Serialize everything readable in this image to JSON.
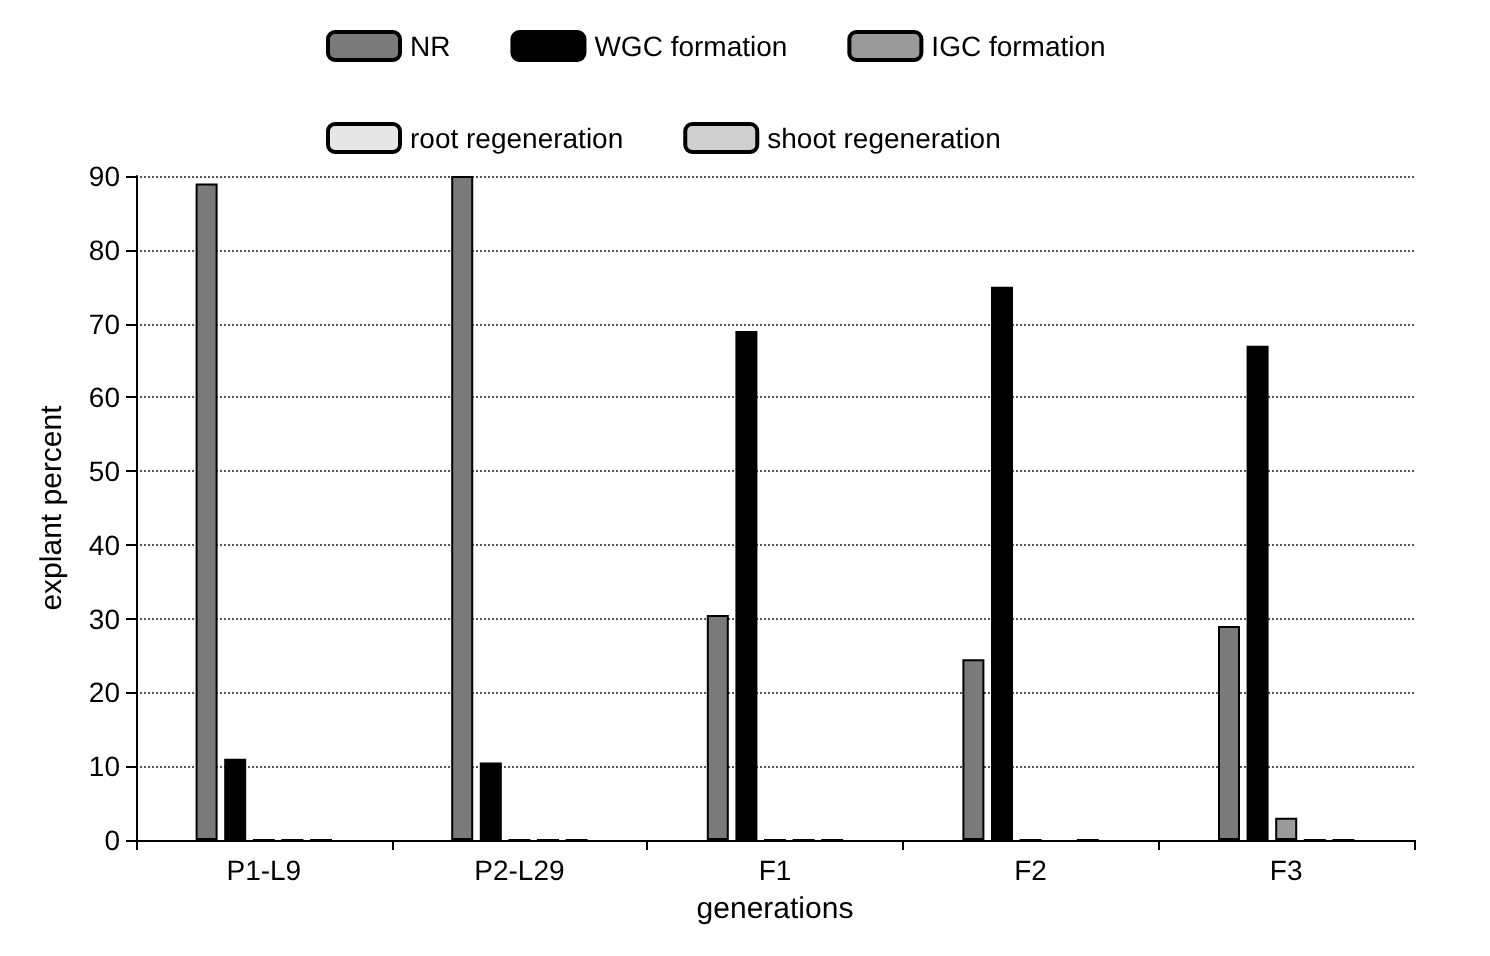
{
  "chart_data": {
    "type": "bar",
    "xlabel": "generations",
    "ylabel": "explant percent",
    "categories": [
      "P1-L9",
      "P2-L29",
      "F1",
      "F2",
      "F3"
    ],
    "series": [
      {
        "name": "NR",
        "color": "#7a7a7a",
        "values": [
          89,
          90,
          30.5,
          24.5,
          29
        ]
      },
      {
        "name": "WGC formation",
        "color": "#000000",
        "values": [
          11,
          10.5,
          69,
          75,
          67
        ]
      },
      {
        "name": "IGC formation",
        "color": "#9a9a9a",
        "values": [
          0,
          0,
          0,
          0,
          3
        ]
      },
      {
        "name": "root regeneration",
        "color": "#e6e6e6",
        "values": [
          0,
          0,
          0,
          null,
          0
        ]
      },
      {
        "name": "shoot regeneration",
        "color": "#cfcfcf",
        "values": [
          0,
          0,
          0,
          0,
          0
        ]
      }
    ],
    "ylim": [
      0,
      90
    ],
    "yticks": [
      0,
      10,
      20,
      30,
      40,
      50,
      60,
      70,
      80,
      90
    ],
    "grid": "y",
    "legend": "top"
  }
}
